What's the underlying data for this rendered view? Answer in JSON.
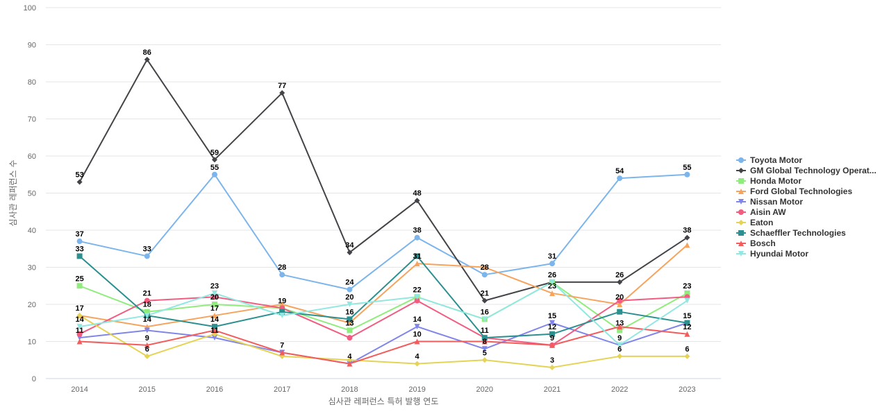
{
  "chart_data": {
    "type": "line",
    "title": "",
    "xlabel": "심사관 레퍼런스 특허 발행 연도",
    "ylabel": "심사관 레퍼런스 수",
    "ylim": [
      0,
      100
    ],
    "yticks": [
      0,
      10,
      20,
      30,
      40,
      50,
      60,
      70,
      80,
      90,
      100
    ],
    "grid": true,
    "legend_position": "right",
    "categories": [
      "2014",
      "2015",
      "2016",
      "2017",
      "2018",
      "2019",
      "2020",
      "2021",
      "2022",
      "2023"
    ],
    "series": [
      {
        "name": "Toyota Motor",
        "legend_label": "Toyota Motor",
        "color": "#7cb5ec",
        "marker": "circle",
        "values": [
          37,
          33,
          55,
          28,
          24,
          38,
          28,
          31,
          54,
          55
        ],
        "show_labels": true
      },
      {
        "name": "GM Global Technology Operations",
        "legend_label": "GM Global Technology Operat...",
        "color": "#434348",
        "marker": "diamond",
        "values": [
          53,
          86,
          59,
          77,
          34,
          48,
          21,
          26,
          26,
          38
        ],
        "show_labels": true
      },
      {
        "name": "Honda Motor",
        "legend_label": "Honda Motor",
        "color": "#90ed7d",
        "marker": "square",
        "values": [
          25,
          18,
          20,
          19,
          13,
          22,
          16,
          26,
          13,
          23
        ],
        "show_labels": true
      },
      {
        "name": "Ford Global Technologies",
        "legend_label": "Ford Global Technologies",
        "color": "#f7a35c",
        "marker": "triangle",
        "values": [
          17,
          14,
          17,
          20,
          15,
          31,
          30,
          23,
          20,
          36
        ],
        "show_labels": false
      },
      {
        "name": "Nissan Motor",
        "legend_label": "Nissan Motor",
        "color": "#8085e9",
        "marker": "triangle-down",
        "values": [
          11,
          13,
          11,
          7,
          4,
          14,
          8,
          15,
          9,
          15
        ],
        "show_labels": false
      },
      {
        "name": "Aisin AW",
        "legend_label": "Aisin AW",
        "color": "#f15c80",
        "marker": "circle",
        "values": [
          12,
          21,
          22,
          19,
          11,
          21,
          11,
          9,
          21,
          22
        ],
        "show_labels": false
      },
      {
        "name": "Eaton",
        "legend_label": "Eaton",
        "color": "#e4d354",
        "marker": "diamond",
        "values": [
          17,
          6,
          12,
          6,
          5,
          4,
          5,
          3,
          6,
          6
        ],
        "show_labels": false
      },
      {
        "name": "Schaeffler Technologies",
        "legend_label": "Schaeffler Technologies",
        "color": "#2b908f",
        "marker": "square",
        "values": [
          33,
          17,
          14,
          18,
          16,
          33,
          11,
          12,
          18,
          15
        ],
        "show_labels": false
      },
      {
        "name": "Bosch",
        "legend_label": "Bosch",
        "color": "#f45b5b",
        "marker": "triangle",
        "values": [
          10,
          9,
          13,
          7,
          4,
          10,
          10,
          9,
          14,
          12
        ],
        "show_labels": false
      },
      {
        "name": "Hyundai Motor",
        "legend_label": "Hyundai Motor",
        "color": "#91e8e1",
        "marker": "triangle-down",
        "values": [
          14,
          17,
          23,
          17,
          20,
          22,
          16,
          26,
          9,
          21
        ],
        "show_labels": false
      }
    ],
    "data_labels": [
      {
        "x": "2014",
        "y": 53,
        "text": "53"
      },
      {
        "x": "2014",
        "y": 37,
        "text": "37"
      },
      {
        "x": "2014",
        "y": 33,
        "text": "33"
      },
      {
        "x": "2014",
        "y": 25,
        "text": "25"
      },
      {
        "x": "2014",
        "y": 17,
        "text": "17"
      },
      {
        "x": "2014",
        "y": 14,
        "text": "14"
      },
      {
        "x": "2014",
        "y": 11,
        "text": "11"
      },
      {
        "x": "2015",
        "y": 86,
        "text": "86"
      },
      {
        "x": "2015",
        "y": 33,
        "text": "33"
      },
      {
        "x": "2015",
        "y": 21,
        "text": "21"
      },
      {
        "x": "2015",
        "y": 18,
        "text": "18"
      },
      {
        "x": "2015",
        "y": 14,
        "text": "14"
      },
      {
        "x": "2015",
        "y": 9,
        "text": "9"
      },
      {
        "x": "2015",
        "y": 6,
        "text": "6"
      },
      {
        "x": "2016",
        "y": 59,
        "text": "59"
      },
      {
        "x": "2016",
        "y": 55,
        "text": "55"
      },
      {
        "x": "2016",
        "y": 23,
        "text": "23"
      },
      {
        "x": "2016",
        "y": 20,
        "text": "20"
      },
      {
        "x": "2016",
        "y": 17,
        "text": "17"
      },
      {
        "x": "2016",
        "y": 14,
        "text": "14"
      },
      {
        "x": "2016",
        "y": 11,
        "text": "11"
      },
      {
        "x": "2017",
        "y": 77,
        "text": "77"
      },
      {
        "x": "2017",
        "y": 28,
        "text": "28"
      },
      {
        "x": "2017",
        "y": 19,
        "text": "19"
      },
      {
        "x": "2017",
        "y": 7,
        "text": "7"
      },
      {
        "x": "2018",
        "y": 34,
        "text": "34"
      },
      {
        "x": "2018",
        "y": 24,
        "text": "24"
      },
      {
        "x": "2018",
        "y": 20,
        "text": "20"
      },
      {
        "x": "2018",
        "y": 16,
        "text": "16"
      },
      {
        "x": "2018",
        "y": 13,
        "text": "13"
      },
      {
        "x": "2018",
        "y": 4,
        "text": "4"
      },
      {
        "x": "2019",
        "y": 48,
        "text": "48"
      },
      {
        "x": "2019",
        "y": 38,
        "text": "38"
      },
      {
        "x": "2019",
        "y": 31,
        "text": "31"
      },
      {
        "x": "2019",
        "y": 22,
        "text": "22"
      },
      {
        "x": "2019",
        "y": 14,
        "text": "14"
      },
      {
        "x": "2019",
        "y": 10,
        "text": "10"
      },
      {
        "x": "2019",
        "y": 4,
        "text": "4"
      },
      {
        "x": "2020",
        "y": 28,
        "text": "28"
      },
      {
        "x": "2020",
        "y": 21,
        "text": "21"
      },
      {
        "x": "2020",
        "y": 16,
        "text": "16"
      },
      {
        "x": "2020",
        "y": 11,
        "text": "11"
      },
      {
        "x": "2020",
        "y": 8,
        "text": "8"
      },
      {
        "x": "2020",
        "y": 5,
        "text": "5"
      },
      {
        "x": "2021",
        "y": 31,
        "text": "31"
      },
      {
        "x": "2021",
        "y": 26,
        "text": "26"
      },
      {
        "x": "2021",
        "y": 23,
        "text": "23"
      },
      {
        "x": "2021",
        "y": 15,
        "text": "15"
      },
      {
        "x": "2021",
        "y": 12,
        "text": "12"
      },
      {
        "x": "2021",
        "y": 9,
        "text": "9"
      },
      {
        "x": "2021",
        "y": 3,
        "text": "3"
      },
      {
        "x": "2022",
        "y": 54,
        "text": "54"
      },
      {
        "x": "2022",
        "y": 26,
        "text": "26"
      },
      {
        "x": "2022",
        "y": 20,
        "text": "20"
      },
      {
        "x": "2022",
        "y": 13,
        "text": "13"
      },
      {
        "x": "2022",
        "y": 9,
        "text": "9"
      },
      {
        "x": "2022",
        "y": 6,
        "text": "6"
      },
      {
        "x": "2023",
        "y": 55,
        "text": "55"
      },
      {
        "x": "2023",
        "y": 38,
        "text": "38"
      },
      {
        "x": "2023",
        "y": 23,
        "text": "23"
      },
      {
        "x": "2023",
        "y": 15,
        "text": "15"
      },
      {
        "x": "2023",
        "y": 12,
        "text": "12"
      },
      {
        "x": "2023",
        "y": 6,
        "text": "6"
      }
    ]
  }
}
